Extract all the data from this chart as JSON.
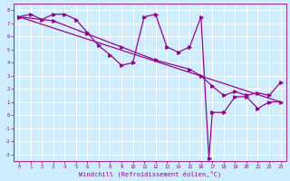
{
  "xlabel": "Windchill (Refroidissement éolien,°C)",
  "xlim": [
    -0.5,
    23.5
  ],
  "ylim": [
    -3.5,
    8.5
  ],
  "xticks": [
    0,
    1,
    2,
    3,
    4,
    5,
    6,
    7,
    8,
    9,
    10,
    11,
    12,
    13,
    14,
    15,
    16,
    17,
    18,
    19,
    20,
    21,
    22,
    23
  ],
  "yticks": [
    -3,
    -2,
    -1,
    0,
    1,
    2,
    3,
    4,
    5,
    6,
    7,
    8
  ],
  "line_color": "#990099",
  "bg_color": "#cceeff",
  "grid_color": "#ffffff",
  "curve1_x": [
    0,
    1,
    2,
    3,
    4,
    5,
    6,
    7,
    8,
    9,
    10,
    11,
    12,
    13,
    14,
    15,
    16,
    16.7,
    17,
    18,
    19,
    20,
    21,
    22,
    23
  ],
  "curve1_y": [
    7.5,
    7.7,
    7.3,
    7.7,
    7.7,
    7.3,
    6.3,
    5.3,
    4.6,
    3.8,
    4.0,
    7.5,
    7.7,
    5.2,
    4.8,
    5.2,
    7.5,
    -3.3,
    0.2,
    0.2,
    1.4,
    1.4,
    0.5,
    1.0,
    1.0
  ],
  "curve2_x": [
    0,
    23
  ],
  "curve2_y": [
    7.5,
    1.0
  ],
  "curve3_x": [
    0,
    3,
    6,
    9,
    12,
    15,
    16,
    17,
    18,
    19,
    20,
    21,
    22,
    23
  ],
  "curve3_y": [
    7.5,
    7.2,
    6.2,
    5.2,
    4.2,
    3.5,
    3.0,
    2.2,
    1.5,
    1.8,
    1.5,
    1.7,
    1.5,
    2.5
  ]
}
